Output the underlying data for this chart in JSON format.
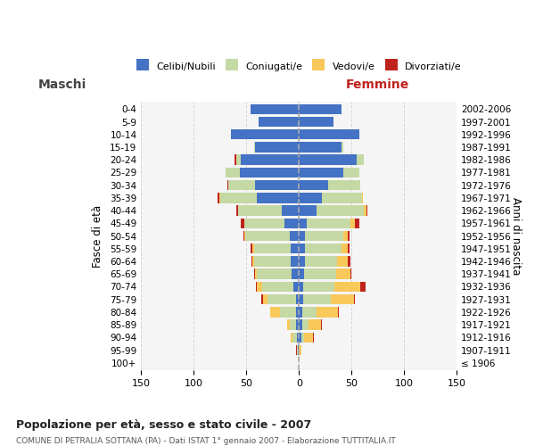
{
  "age_groups": [
    "100+",
    "95-99",
    "90-94",
    "85-89",
    "80-84",
    "75-79",
    "70-74",
    "65-69",
    "60-64",
    "55-59",
    "50-54",
    "45-49",
    "40-44",
    "35-39",
    "30-34",
    "25-29",
    "20-24",
    "15-19",
    "10-14",
    "5-9",
    "0-4"
  ],
  "birth_years": [
    "≤ 1906",
    "1907-1911",
    "1912-1916",
    "1917-1921",
    "1922-1926",
    "1927-1931",
    "1932-1936",
    "1937-1941",
    "1942-1946",
    "1947-1951",
    "1952-1956",
    "1957-1961",
    "1962-1966",
    "1967-1971",
    "1972-1976",
    "1977-1981",
    "1982-1986",
    "1987-1991",
    "1992-1996",
    "1997-2001",
    "2002-2006"
  ],
  "maschi": {
    "celibi": [
      0,
      1,
      2,
      3,
      3,
      3,
      5,
      7,
      8,
      8,
      9,
      14,
      16,
      40,
      42,
      56,
      55,
      42,
      65,
      38,
      46
    ],
    "coniugati": [
      0,
      1,
      4,
      6,
      15,
      27,
      30,
      33,
      35,
      35,
      42,
      38,
      42,
      35,
      25,
      14,
      5,
      1,
      0,
      0,
      0
    ],
    "vedovi": [
      0,
      0,
      2,
      2,
      9,
      4,
      5,
      2,
      1,
      1,
      1,
      0,
      0,
      1,
      0,
      0,
      0,
      0,
      0,
      0,
      0
    ],
    "divorziati": [
      0,
      1,
      0,
      0,
      0,
      2,
      1,
      1,
      1,
      2,
      1,
      3,
      2,
      1,
      1,
      0,
      1,
      0,
      0,
      0,
      0
    ]
  },
  "femmine": {
    "nubili": [
      0,
      0,
      2,
      3,
      3,
      4,
      4,
      5,
      6,
      6,
      6,
      7,
      17,
      22,
      28,
      42,
      55,
      40,
      57,
      33,
      40
    ],
    "coniugate": [
      0,
      0,
      3,
      6,
      14,
      26,
      30,
      30,
      30,
      34,
      36,
      42,
      45,
      38,
      30,
      15,
      7,
      2,
      0,
      0,
      0
    ],
    "vedove": [
      0,
      2,
      8,
      12,
      20,
      22,
      24,
      14,
      10,
      6,
      4,
      4,
      2,
      1,
      0,
      0,
      0,
      0,
      0,
      0,
      0
    ],
    "divorziate": [
      0,
      0,
      1,
      1,
      1,
      1,
      5,
      1,
      3,
      2,
      2,
      4,
      1,
      0,
      0,
      0,
      0,
      0,
      0,
      0,
      0
    ]
  },
  "colors": {
    "celibi": "#4472C4",
    "coniugati": "#C5D9A4",
    "vedovi": "#F8C85A",
    "divorziati": "#C0231E"
  },
  "xlim": 150,
  "title": "Popolazione per età, sesso e stato civile - 2007",
  "subtitle": "COMUNE DI PETRALIA SOTTANA (PA) - Dati ISTAT 1° gennaio 2007 - Elaborazione TUTTITALIA.IT",
  "ylabel_left": "Fasce di età",
  "ylabel_right": "Anni di nascita",
  "xlabel_maschi": "Maschi",
  "xlabel_femmine": "Femmine",
  "legend_labels": [
    "Celibi/Nubili",
    "Coniugati/e",
    "Vedovi/e",
    "Divorziati/e"
  ],
  "background_color": "#FFFFFF",
  "grid_color": "#CCCCCC"
}
